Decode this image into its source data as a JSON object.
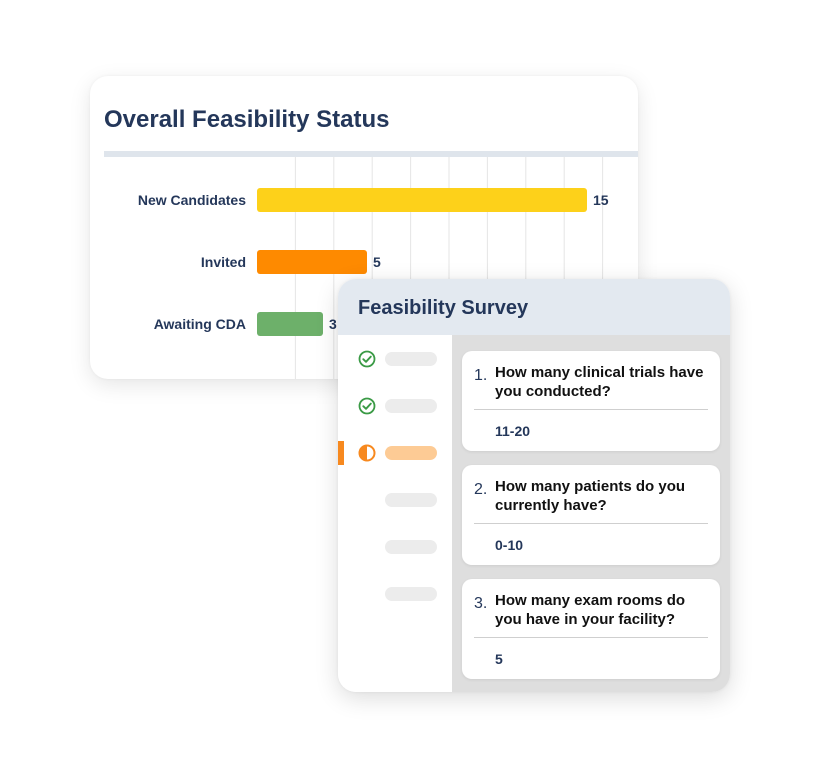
{
  "status_card": {
    "title": "Overall Feasibility Status"
  },
  "chart_data": {
    "type": "bar",
    "orientation": "horizontal",
    "categories": [
      "New Candidates",
      "Invited",
      "Awaiting CDA"
    ],
    "values": [
      15,
      5,
      3
    ],
    "colors": [
      "#fdd11a",
      "#fe8a00",
      "#6db06a"
    ],
    "grid": true
  },
  "survey": {
    "title": "Feasibility Survey",
    "steps": [
      {
        "status": "complete",
        "icon": "check-circle-icon"
      },
      {
        "status": "complete",
        "icon": "check-circle-icon"
      },
      {
        "status": "in-progress",
        "icon": "half-circle-icon"
      },
      {
        "status": "pending"
      },
      {
        "status": "pending"
      },
      {
        "status": "pending"
      }
    ],
    "questions": [
      {
        "number": "1.",
        "text": "How many clinical trials have you conducted?",
        "answer": "11-20"
      },
      {
        "number": "2.",
        "text": "How many patients do you currently have?",
        "answer": "0-10"
      },
      {
        "number": "3.",
        "text": "How many exam rooms do you have in your facility?",
        "answer": "5"
      }
    ],
    "colors": {
      "accent": "#f7891f",
      "check": "#3a9a45",
      "title": "#24375a"
    }
  }
}
